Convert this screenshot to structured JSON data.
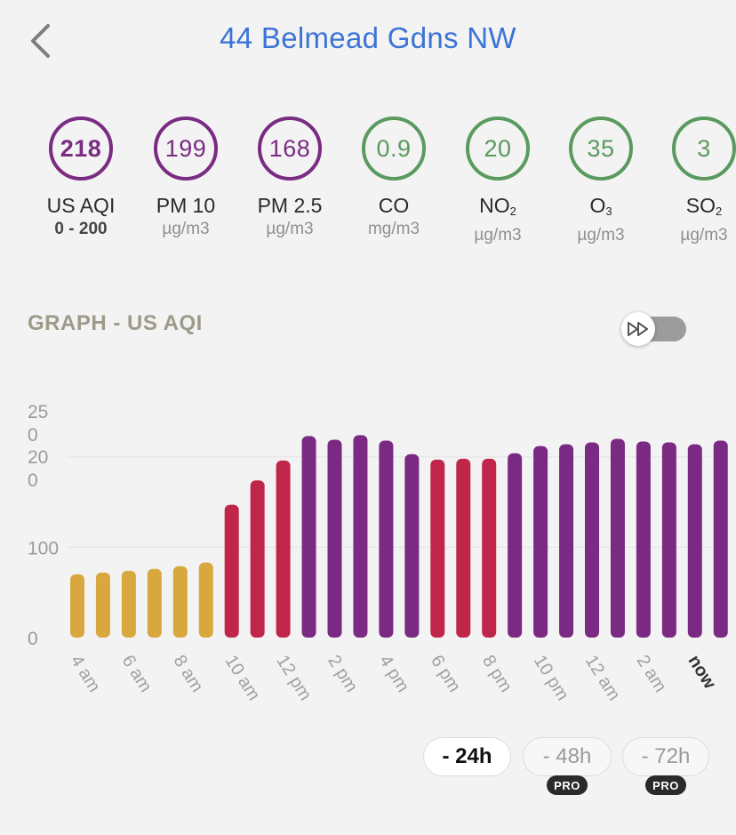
{
  "header": {
    "title": "44 Belmead Gdns NW"
  },
  "metrics": [
    {
      "value": "218",
      "label": "US AQI",
      "unit": "0 - 200",
      "color": "#7a2c82"
    },
    {
      "value": "199",
      "label": "PM 10",
      "unit": "µg/m3",
      "color": "#7a2c82"
    },
    {
      "value": "168",
      "label": "PM 2.5",
      "unit": "µg/m3",
      "color": "#7a2c82"
    },
    {
      "value": "0.9",
      "label": "CO",
      "unit": "mg/m3",
      "color": "#5a9a5f"
    },
    {
      "value": "20",
      "label_main": "NO",
      "label_sub": "2",
      "unit": "µg/m3",
      "color": "#5a9a5f"
    },
    {
      "value": "35",
      "label_main": "O",
      "label_sub": "3",
      "unit": "µg/m3",
      "color": "#5a9a5f"
    },
    {
      "value": "3",
      "label_main": "SO",
      "label_sub": "2",
      "unit": "µg/m3",
      "color": "#5a9a5f"
    }
  ],
  "graph": {
    "title": "GRAPH - US AQI",
    "toggle_icon": "fast-forward-icon"
  },
  "chart_data": {
    "type": "bar",
    "ylim": [
      0,
      250
    ],
    "yticks": [
      "0",
      "100",
      "20\n0",
      "25\n0"
    ],
    "grid": true,
    "x_tick_labels": [
      "4 am",
      "6 am",
      "8 am",
      "10 am",
      "12 pm",
      "2 pm",
      "4 pm",
      "6 pm",
      "8 pm",
      "10 pm",
      "12 am",
      "2 am",
      "now"
    ],
    "series": [
      {
        "values": [
          70,
          72,
          74,
          76,
          79,
          83,
          147,
          174,
          196,
          223,
          219,
          224,
          218,
          203,
          197,
          198,
          198,
          204,
          212,
          214,
          216,
          220,
          217,
          216,
          214,
          218
        ]
      }
    ],
    "colors": {
      "moderate": "#d8a83e",
      "unhealthy": "#c0264a",
      "very_unhealthy": "#7a2a82"
    }
  },
  "ranges": [
    {
      "label": "- 24h",
      "active": true
    },
    {
      "label": "- 48h",
      "active": false,
      "badge": "PRO"
    },
    {
      "label": "- 72h",
      "active": false,
      "badge": "PRO"
    }
  ]
}
